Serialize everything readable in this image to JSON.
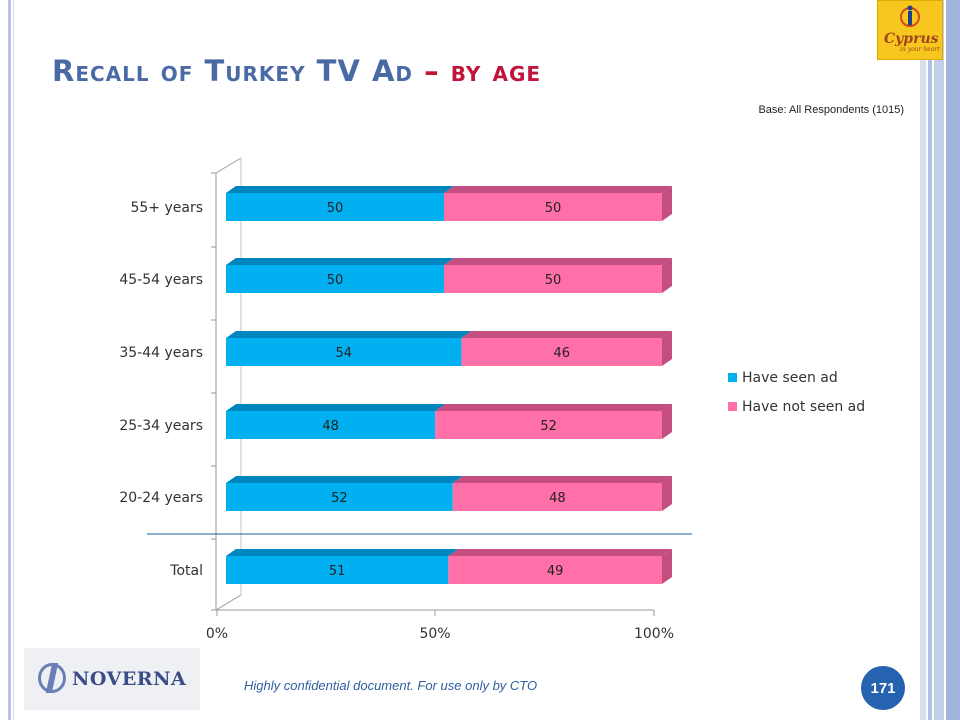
{
  "slide": {
    "title_main": "Recall of Turkey TV Ad",
    "title_dash": "–",
    "title_sub": "by age",
    "base_note": "Base: All Respondents (1015)",
    "footer_note": "Highly confidential document. For use only by CTO",
    "page_number": "171",
    "brand_logo_text": "NOVERNA",
    "cyprus_logo_text": "Cyprus",
    "cyprus_logo_tagline": "in your heart"
  },
  "chart_data": {
    "type": "bar",
    "orientation": "horizontal",
    "stacked": "percent",
    "categories": [
      "55+ years",
      "45-54 years",
      "35-44 years",
      "25-34 years",
      "20-24 years",
      "Total"
    ],
    "series": [
      {
        "name": "Have seen ad",
        "values": [
          50,
          50,
          54,
          48,
          52,
          51
        ],
        "color": "#00b0f0",
        "shade": "#0086bf"
      },
      {
        "name": "Have not seen ad",
        "values": [
          50,
          50,
          46,
          52,
          48,
          49
        ],
        "color": "#ff6fa8",
        "shade": "#c44e7f"
      }
    ],
    "x_ticks": [
      "0%",
      "50%",
      "100%"
    ],
    "xlim": [
      0,
      100
    ],
    "legend_position": "right",
    "grid": false
  }
}
